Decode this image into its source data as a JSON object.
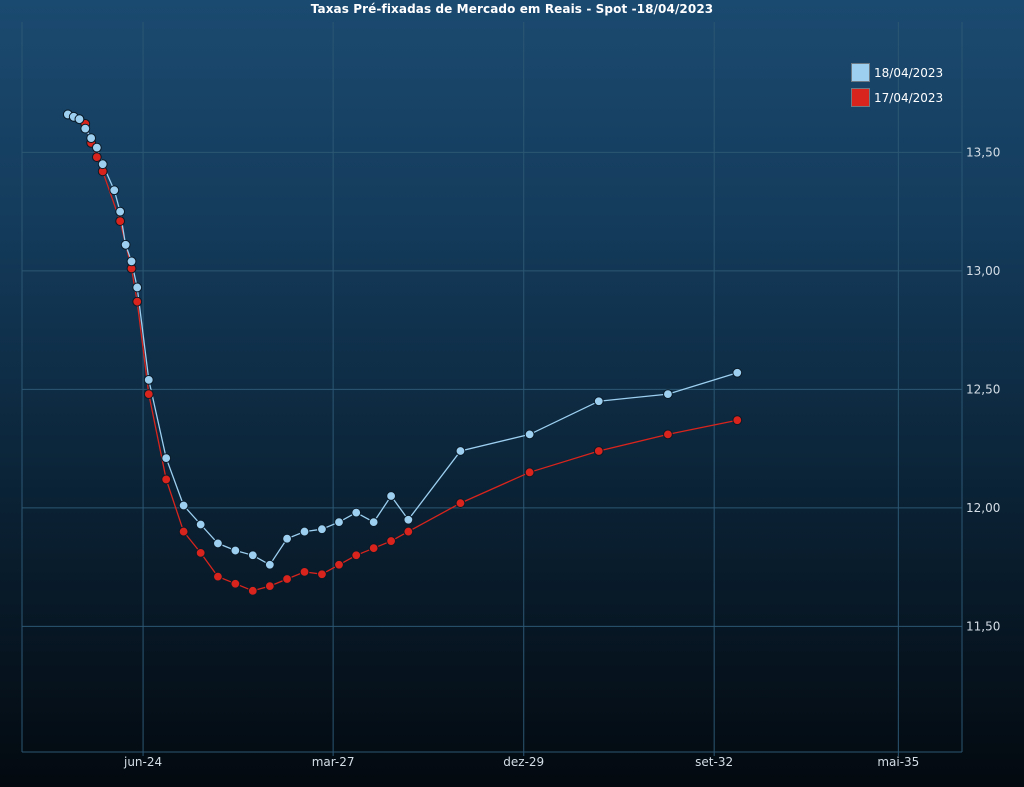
{
  "title": "Taxas Pré-fixadas de Mercado em Reais - Spot -18/04/2023",
  "colors": {
    "series_a": "#9ccff0",
    "series_b": "#d8241c",
    "grid": "#2c5773",
    "axis_text": "#d4dde6"
  },
  "chart_data": {
    "type": "line",
    "title": "Taxas Pré-fixadas de Mercado em Reais - Spot -18/04/2023",
    "xlabel": "",
    "ylabel": "",
    "x_ticks": [
      "jun-24",
      "mar-27",
      "dez-29",
      "set-32",
      "mai-35"
    ],
    "y_ticks": [
      "11,50",
      "12,00",
      "12,50",
      "13,00",
      "13,50"
    ],
    "y_tick_values": [
      11.5,
      12.0,
      12.5,
      13.0,
      13.5
    ],
    "ylim": [
      10.97,
      14.05
    ],
    "xlim": [
      "2022-09-01",
      "2036-04-01"
    ],
    "grid": true,
    "legend_position": "top-right",
    "series": [
      {
        "name": "18/04/2023",
        "color": "#9ccff0",
        "points": [
          {
            "x": "2023-05-01",
            "y": 13.66
          },
          {
            "x": "2023-06-01",
            "y": 13.65
          },
          {
            "x": "2023-07-01",
            "y": 13.64
          },
          {
            "x": "2023-08-01",
            "y": 13.6
          },
          {
            "x": "2023-09-01",
            "y": 13.56
          },
          {
            "x": "2023-10-01",
            "y": 13.52
          },
          {
            "x": "2023-11-01",
            "y": 13.45
          },
          {
            "x": "2024-01-01",
            "y": 13.34
          },
          {
            "x": "2024-02-01",
            "y": 13.25
          },
          {
            "x": "2024-03-01",
            "y": 13.11
          },
          {
            "x": "2024-04-01",
            "y": 13.04
          },
          {
            "x": "2024-05-01",
            "y": 12.93
          },
          {
            "x": "2024-07-01",
            "y": 12.54
          },
          {
            "x": "2024-10-01",
            "y": 12.21
          },
          {
            "x": "2025-01-01",
            "y": 12.01
          },
          {
            "x": "2025-04-01",
            "y": 11.93
          },
          {
            "x": "2025-07-01",
            "y": 11.85
          },
          {
            "x": "2025-10-01",
            "y": 11.82
          },
          {
            "x": "2026-01-01",
            "y": 11.8
          },
          {
            "x": "2026-04-01",
            "y": 11.76
          },
          {
            "x": "2026-07-01",
            "y": 11.87
          },
          {
            "x": "2026-10-01",
            "y": 11.9
          },
          {
            "x": "2027-01-01",
            "y": 11.91
          },
          {
            "x": "2027-04-01",
            "y": 11.94
          },
          {
            "x": "2027-07-01",
            "y": 11.98
          },
          {
            "x": "2027-10-01",
            "y": 11.94
          },
          {
            "x": "2028-01-01",
            "y": 12.05
          },
          {
            "x": "2028-04-01",
            "y": 11.95
          },
          {
            "x": "2029-01-01",
            "y": 12.24
          },
          {
            "x": "2030-01-01",
            "y": 12.31
          },
          {
            "x": "2031-01-01",
            "y": 12.45
          },
          {
            "x": "2032-01-01",
            "y": 12.48
          },
          {
            "x": "2033-01-01",
            "y": 12.57
          }
        ]
      },
      {
        "name": "17/04/2023",
        "color": "#d8241c",
        "points": [
          {
            "x": "2023-05-01",
            "y": 13.66
          },
          {
            "x": "2023-06-01",
            "y": 13.65
          },
          {
            "x": "2023-07-01",
            "y": 13.64
          },
          {
            "x": "2023-08-01",
            "y": 13.62
          },
          {
            "x": "2023-09-01",
            "y": 13.54
          },
          {
            "x": "2023-10-01",
            "y": 13.48
          },
          {
            "x": "2023-11-01",
            "y": 13.42
          },
          {
            "x": "2024-02-01",
            "y": 13.21
          },
          {
            "x": "2024-04-01",
            "y": 13.01
          },
          {
            "x": "2024-05-01",
            "y": 12.87
          },
          {
            "x": "2024-07-01",
            "y": 12.48
          },
          {
            "x": "2024-10-01",
            "y": 12.12
          },
          {
            "x": "2025-01-01",
            "y": 11.9
          },
          {
            "x": "2025-04-01",
            "y": 11.81
          },
          {
            "x": "2025-07-01",
            "y": 11.71
          },
          {
            "x": "2025-10-01",
            "y": 11.68
          },
          {
            "x": "2026-01-01",
            "y": 11.65
          },
          {
            "x": "2026-04-01",
            "y": 11.67
          },
          {
            "x": "2026-07-01",
            "y": 11.7
          },
          {
            "x": "2026-10-01",
            "y": 11.73
          },
          {
            "x": "2027-01-01",
            "y": 11.72
          },
          {
            "x": "2027-04-01",
            "y": 11.76
          },
          {
            "x": "2027-07-01",
            "y": 11.8
          },
          {
            "x": "2027-10-01",
            "y": 11.83
          },
          {
            "x": "2028-01-01",
            "y": 11.86
          },
          {
            "x": "2028-04-01",
            "y": 11.9
          },
          {
            "x": "2029-01-01",
            "y": 12.02
          },
          {
            "x": "2030-01-01",
            "y": 12.15
          },
          {
            "x": "2031-01-01",
            "y": 12.24
          },
          {
            "x": "2032-01-01",
            "y": 12.31
          },
          {
            "x": "2033-01-01",
            "y": 12.37
          }
        ]
      }
    ]
  }
}
